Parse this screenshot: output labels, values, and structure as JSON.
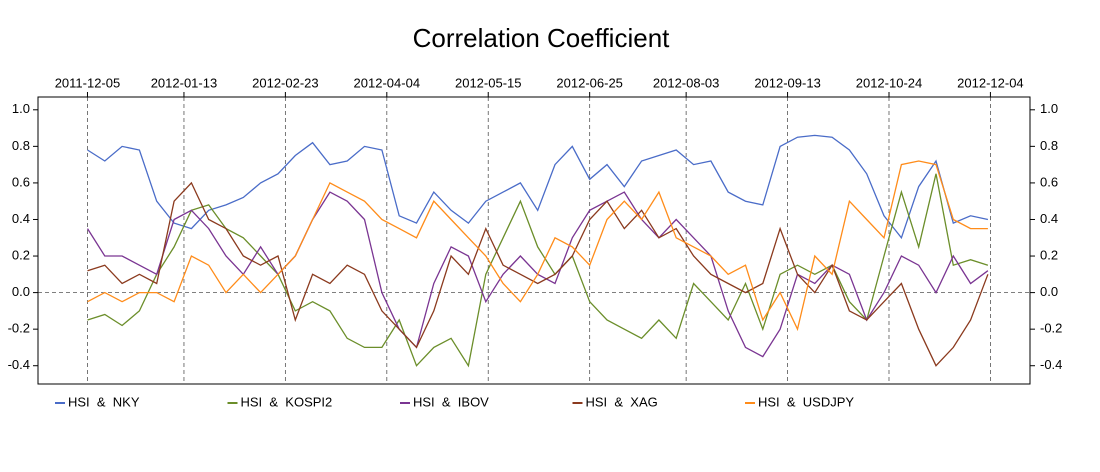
{
  "chart_data": {
    "type": "line",
    "title": "Correlation Coefficient",
    "x": [
      "2011-12-05",
      "2011-12-12",
      "2011-12-19",
      "2011-12-26",
      "2012-01-02",
      "2012-01-09",
      "2012-01-16",
      "2012-01-23",
      "2012-01-30",
      "2012-02-06",
      "2012-02-13",
      "2012-02-20",
      "2012-02-27",
      "2012-03-05",
      "2012-03-12",
      "2012-03-19",
      "2012-03-26",
      "2012-04-02",
      "2012-04-09",
      "2012-04-16",
      "2012-04-23",
      "2012-04-30",
      "2012-05-07",
      "2012-05-14",
      "2012-05-21",
      "2012-05-28",
      "2012-06-04",
      "2012-06-11",
      "2012-06-18",
      "2012-06-25",
      "2012-07-02",
      "2012-07-09",
      "2012-07-16",
      "2012-07-23",
      "2012-07-30",
      "2012-08-06",
      "2012-08-13",
      "2012-08-20",
      "2012-08-27",
      "2012-09-03",
      "2012-09-10",
      "2012-09-17",
      "2012-09-24",
      "2012-10-01",
      "2012-10-08",
      "2012-10-15",
      "2012-10-22",
      "2012-10-29",
      "2012-11-05",
      "2012-11-12",
      "2012-11-19",
      "2012-11-26",
      "2012-12-03"
    ],
    "series": [
      {
        "name": "HSI  &  NKY",
        "color": "#4a6cc8",
        "values": [
          0.78,
          0.72,
          0.8,
          0.78,
          0.5,
          0.38,
          0.35,
          0.45,
          0.48,
          0.52,
          0.6,
          0.65,
          0.75,
          0.82,
          0.7,
          0.72,
          0.8,
          0.78,
          0.42,
          0.38,
          0.55,
          0.45,
          0.38,
          0.5,
          0.55,
          0.6,
          0.45,
          0.7,
          0.8,
          0.62,
          0.7,
          0.58,
          0.72,
          0.75,
          0.78,
          0.7,
          0.72,
          0.55,
          0.5,
          0.48,
          0.8,
          0.85,
          0.86,
          0.85,
          0.78,
          0.65,
          0.42,
          0.3,
          0.58,
          0.72,
          0.38,
          0.42,
          0.4
        ]
      },
      {
        "name": "HSI  &  KOSPI2",
        "color": "#6b8e2a",
        "values": [
          -0.15,
          -0.12,
          -0.18,
          -0.1,
          0.1,
          0.25,
          0.45,
          0.48,
          0.35,
          0.3,
          0.2,
          0.1,
          -0.1,
          -0.05,
          -0.1,
          -0.25,
          -0.3,
          -0.3,
          -0.15,
          -0.4,
          -0.3,
          -0.25,
          -0.4,
          0.1,
          0.3,
          0.5,
          0.25,
          0.1,
          0.2,
          -0.05,
          -0.15,
          -0.2,
          -0.25,
          -0.15,
          -0.25,
          0.05,
          -0.05,
          -0.15,
          0.05,
          -0.2,
          0.1,
          0.15,
          0.1,
          0.15,
          -0.05,
          -0.15,
          0.2,
          0.55,
          0.25,
          0.65,
          0.15,
          0.18,
          0.15
        ]
      },
      {
        "name": "HSI  &  IBOV",
        "color": "#7a3592",
        "values": [
          0.35,
          0.2,
          0.2,
          0.15,
          0.1,
          0.4,
          0.45,
          0.35,
          0.2,
          0.1,
          0.25,
          0.1,
          0.2,
          0.4,
          0.55,
          0.5,
          0.4,
          0.0,
          -0.2,
          -0.3,
          0.05,
          0.25,
          0.2,
          -0.05,
          0.1,
          0.2,
          0.1,
          0.05,
          0.3,
          0.45,
          0.5,
          0.55,
          0.4,
          0.3,
          0.4,
          0.3,
          0.2,
          -0.1,
          -0.3,
          -0.35,
          -0.2,
          0.1,
          0.05,
          0.15,
          0.1,
          -0.15,
          0.0,
          0.2,
          0.15,
          0.0,
          0.2,
          0.05,
          0.12
        ]
      },
      {
        "name": "HSI  &  XAG",
        "color": "#8b3a1e",
        "values": [
          0.12,
          0.15,
          0.05,
          0.1,
          0.05,
          0.5,
          0.6,
          0.4,
          0.35,
          0.2,
          0.15,
          0.2,
          -0.15,
          0.1,
          0.05,
          0.15,
          0.1,
          -0.1,
          -0.2,
          -0.3,
          -0.1,
          0.2,
          0.1,
          0.35,
          0.15,
          0.1,
          0.05,
          0.1,
          0.2,
          0.4,
          0.5,
          0.35,
          0.45,
          0.3,
          0.35,
          0.2,
          0.1,
          0.05,
          0.0,
          0.05,
          0.35,
          0.1,
          0.0,
          0.15,
          -0.1,
          -0.15,
          -0.05,
          0.05,
          -0.2,
          -0.4,
          -0.3,
          -0.15,
          0.1
        ]
      },
      {
        "name": "HSI  &  USDJPY",
        "color": "#ff8c1a",
        "values": [
          -0.05,
          0.0,
          -0.05,
          0.0,
          0.0,
          -0.05,
          0.2,
          0.15,
          0.0,
          0.1,
          0.0,
          0.1,
          0.2,
          0.4,
          0.6,
          0.55,
          0.5,
          0.4,
          0.35,
          0.3,
          0.5,
          0.4,
          0.3,
          0.2,
          0.05,
          -0.05,
          0.1,
          0.3,
          0.25,
          0.15,
          0.4,
          0.5,
          0.4,
          0.55,
          0.3,
          0.25,
          0.2,
          0.1,
          0.15,
          -0.15,
          0.0,
          -0.2,
          0.2,
          0.1,
          0.5,
          0.4,
          0.3,
          0.7,
          0.72,
          0.7,
          0.4,
          0.35,
          0.35
        ]
      }
    ],
    "xlim": [
      "2011-11-15",
      "2012-12-20"
    ],
    "xticks": [
      "2011-12-05",
      "2012-01-13",
      "2012-02-23",
      "2012-04-04",
      "2012-05-15",
      "2012-06-25",
      "2012-08-03",
      "2012-09-13",
      "2012-10-24",
      "2012-12-04"
    ],
    "ylim": [
      -0.5,
      1.07
    ],
    "yticks": [
      -0.4,
      -0.2,
      {
        "value": 0,
        "label": "0.0"
      },
      0.2,
      0.4,
      0.6,
      0.8,
      {
        "value": 1,
        "label": "1.0"
      }
    ],
    "y2lim": [
      -0.5,
      1.07
    ],
    "y2ticks": [
      -0.4,
      -0.2,
      {
        "value": 0,
        "label": "0.0"
      },
      0.2,
      0.4,
      0.6,
      0.8,
      {
        "value": 1,
        "label": "1.0"
      }
    ],
    "grid": true,
    "zero_line": true,
    "legend": "bottom"
  }
}
